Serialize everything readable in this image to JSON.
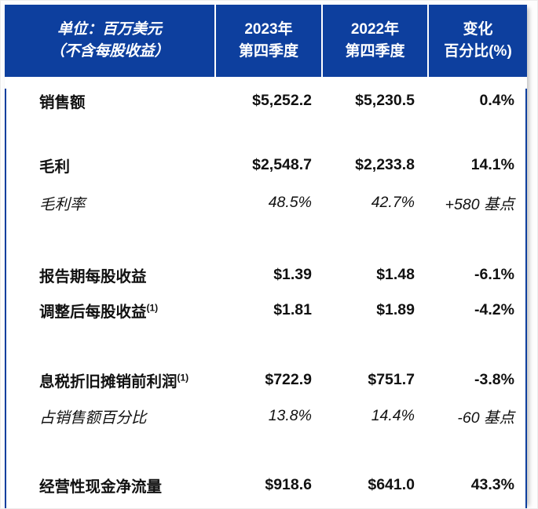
{
  "colors": {
    "header_bg": "#0D3F9E",
    "header_text": "#FFFFFF",
    "table_border": "#0D3F9E",
    "body_text": "#111111",
    "divider": "#FFFFFF"
  },
  "header": {
    "unit": {
      "line1": "单位：百万美元",
      "line2": "（不含每股收益）"
    },
    "columns": [
      {
        "line1": "2023年",
        "line2": "第四季度"
      },
      {
        "line1": "2022年",
        "line2": "第四季度"
      },
      {
        "line1": "变化",
        "line2": "百分比(%)"
      }
    ]
  },
  "rows": [
    {
      "label": "销售额",
      "sup": "",
      "q4_2023": "$5,252.2",
      "q4_2022": "$5,230.5",
      "change": "0.4%"
    },
    {
      "label": "毛利",
      "sup": "",
      "q4_2023": "$2,548.7",
      "q4_2022": "$2,233.8",
      "change": "14.1%"
    },
    {
      "label": "毛利率",
      "sup": "",
      "q4_2023": "48.5%",
      "q4_2022": "42.7%",
      "change": "+580 基点"
    },
    {
      "label": "报告期每股收益",
      "sup": "",
      "q4_2023": "$1.39",
      "q4_2022": "$1.48",
      "change": "-6.1%"
    },
    {
      "label": "调整后每股收益",
      "sup": "(1)",
      "q4_2023": "$1.81",
      "q4_2022": "$1.89",
      "change": "-4.2%"
    },
    {
      "label": "息税折旧摊销前利润",
      "sup": "(1)",
      "q4_2023": "$722.9",
      "q4_2022": "$751.7",
      "change": "-3.8%"
    },
    {
      "label": "占销售额百分比",
      "sup": "",
      "q4_2023": "13.8%",
      "q4_2022": "14.4%",
      "change": "-60 基点"
    },
    {
      "label": "经营性现金净流量",
      "sup": "",
      "q4_2023": "$918.6",
      "q4_2022": "$641.0",
      "change": "43.3%"
    }
  ]
}
